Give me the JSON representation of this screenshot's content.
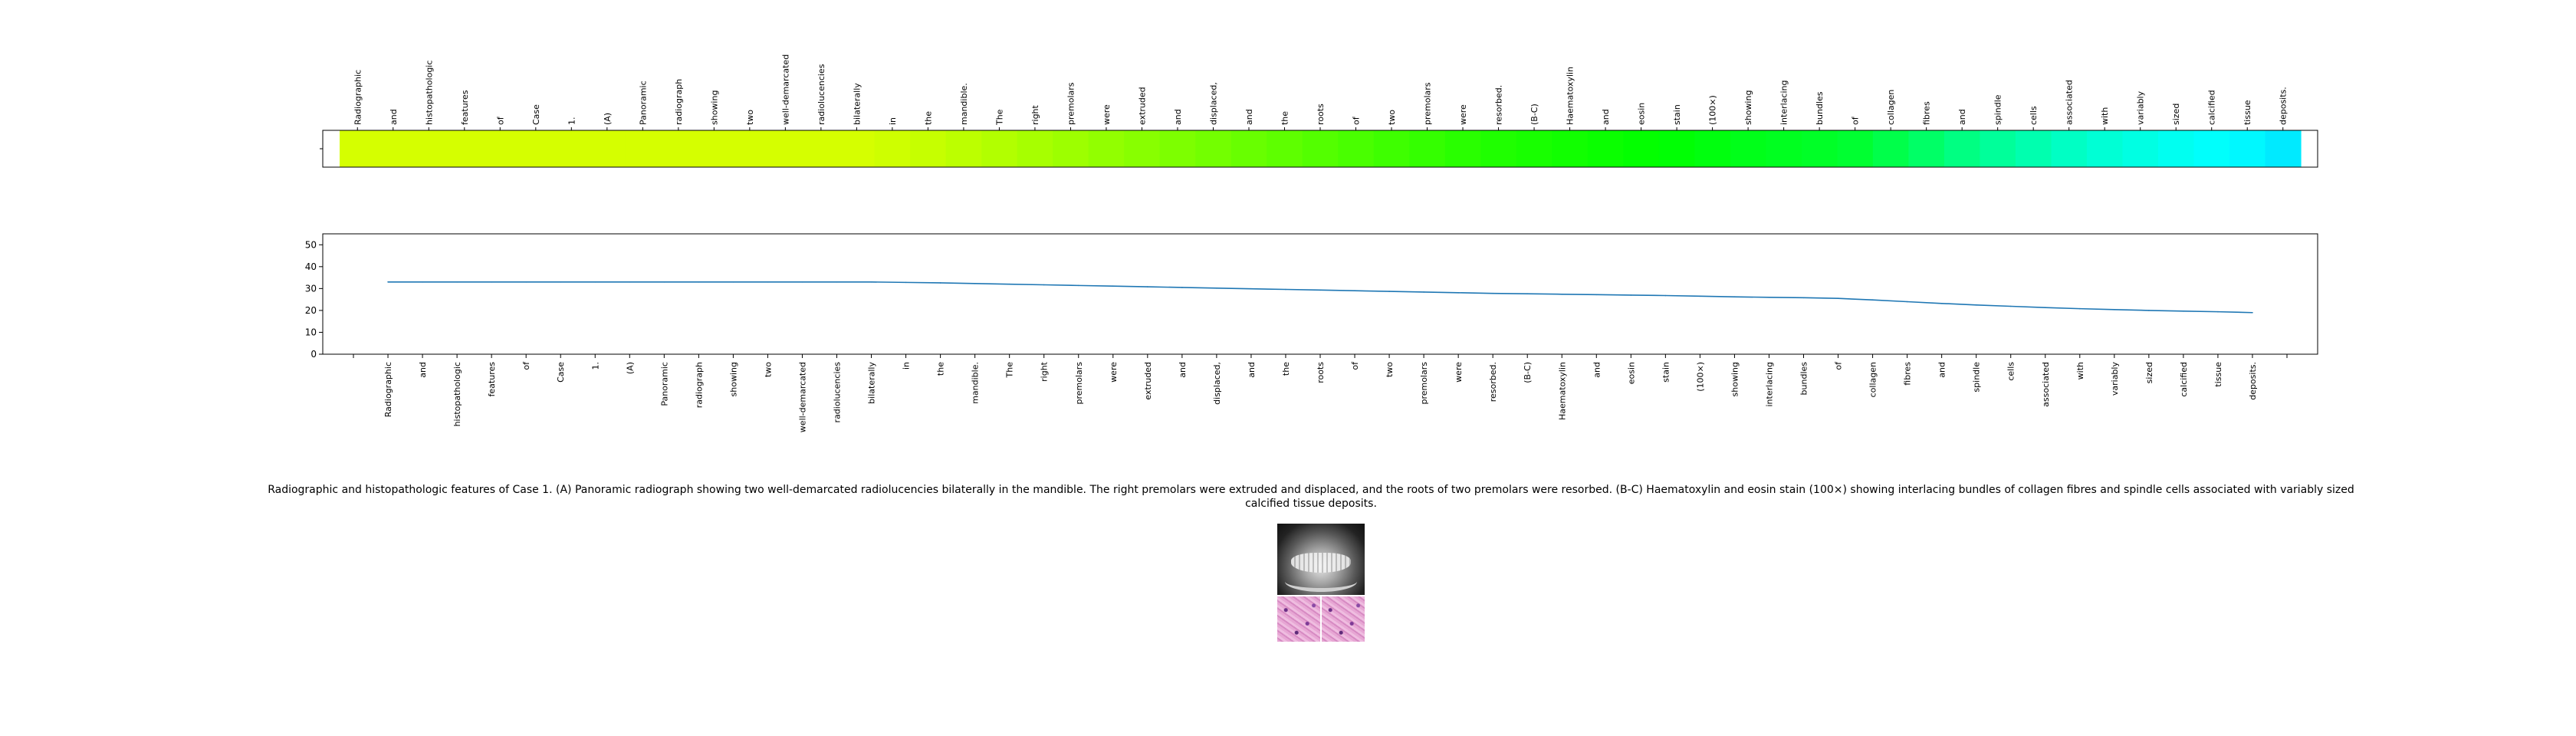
{
  "chart_data": [
    {
      "type": "heatmap",
      "x": [
        "Radiographic",
        "and",
        "histopathologic",
        "features",
        "of",
        "Case",
        "1.",
        "(A)",
        "Panoramic",
        "radiograph",
        "showing",
        "two",
        "well-demarcated",
        "radiolucencies",
        "bilaterally",
        "in",
        "the",
        "mandible.",
        "The",
        "right",
        "premolars",
        "were",
        "extruded",
        "and",
        "displaced,",
        "and",
        "the",
        "roots",
        "of",
        "two",
        "premolars",
        "were",
        "resorbed.",
        "(B-C)",
        "Haematoxylin",
        "and",
        "eosin",
        "stain",
        "(100×)",
        "showing",
        "interlacing",
        "bundles",
        "of",
        "collagen",
        "fibres",
        "and",
        "spindle",
        "cells",
        "associated",
        "with",
        "variably",
        "sized",
        "calcified",
        "tissue",
        "deposits."
      ],
      "colormap": "gist_rainbow",
      "values": [
        33.0,
        33.0,
        33.0,
        33.0,
        33.0,
        33.0,
        33.0,
        33.0,
        33.0,
        33.0,
        33.0,
        33.0,
        33.0,
        33.0,
        33.0,
        32.8,
        32.6,
        32.3,
        32.0,
        31.7,
        31.4,
        31.1,
        30.8,
        30.5,
        30.2,
        29.9,
        29.6,
        29.3,
        29.0,
        28.7,
        28.4,
        28.1,
        27.8,
        27.6,
        27.4,
        27.2,
        27.0,
        26.8,
        26.5,
        26.2,
        26.0,
        25.8,
        25.5,
        24.8,
        24.0,
        23.2,
        22.5,
        21.9,
        21.3,
        20.8,
        20.4,
        20.0,
        19.7,
        19.4,
        19.0
      ]
    },
    {
      "type": "line",
      "x": [
        "Radiographic",
        "and",
        "histopathologic",
        "features",
        "of",
        "Case",
        "1.",
        "(A)",
        "Panoramic",
        "radiograph",
        "showing",
        "two",
        "well-demarcated",
        "radiolucencies",
        "bilaterally",
        "in",
        "the",
        "mandible.",
        "The",
        "right",
        "premolars",
        "were",
        "extruded",
        "and",
        "displaced,",
        "and",
        "the",
        "roots",
        "of",
        "two",
        "premolars",
        "were",
        "resorbed.",
        "(B-C)",
        "Haematoxylin",
        "and",
        "eosin",
        "stain",
        "(100×)",
        "showing",
        "interlacing",
        "bundles",
        "of",
        "collagen",
        "fibres",
        "and",
        "spindle",
        "cells",
        "associated",
        "with",
        "variably",
        "sized",
        "calcified",
        "tissue",
        "deposits."
      ],
      "values": [
        33.0,
        33.0,
        33.0,
        33.0,
        33.0,
        33.0,
        33.0,
        33.0,
        33.0,
        33.0,
        33.0,
        33.0,
        33.0,
        33.0,
        33.0,
        32.8,
        32.6,
        32.3,
        32.0,
        31.7,
        31.4,
        31.1,
        30.8,
        30.5,
        30.2,
        29.9,
        29.6,
        29.3,
        29.0,
        28.7,
        28.4,
        28.1,
        27.8,
        27.6,
        27.4,
        27.2,
        27.0,
        26.8,
        26.5,
        26.2,
        26.0,
        25.8,
        25.5,
        24.8,
        24.0,
        23.2,
        22.5,
        21.9,
        21.3,
        20.8,
        20.4,
        20.0,
        19.7,
        19.4,
        19.0
      ],
      "yticks": [
        0,
        10,
        20,
        30,
        40,
        50
      ],
      "ylim": [
        0,
        55
      ],
      "line_color": "#1f77b4"
    }
  ],
  "caption": "Radiographic and histopathologic features of Case 1. (A) Panoramic radiograph showing two well-demarcated radiolucencies bilaterally in the mandible. The right premolars were extruded and displaced, and the roots of two premolars were resorbed. (B-C) Haematoxylin and eosin stain (100×) showing interlacing bundles of collagen fibres and spindle cells associated with variably sized calcified tissue deposits."
}
